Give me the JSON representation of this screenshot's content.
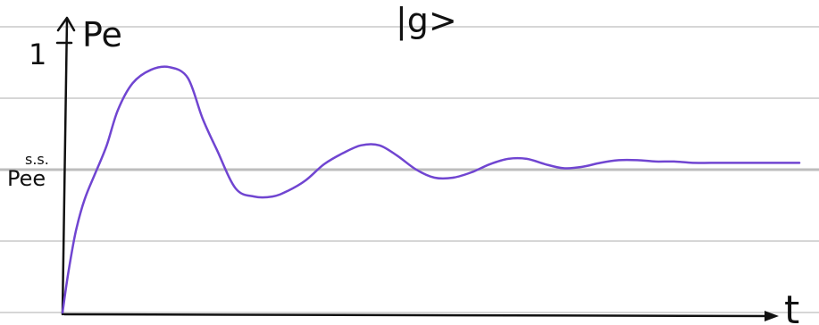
{
  "chart_data": {
    "type": "line",
    "title": "|g>",
    "xlabel": "t",
    "ylabel": "Pe",
    "y_tick_labels": {
      "top": "1",
      "steady_state": "Pee",
      "steady_state_sup": "s.s."
    },
    "ylim": [
      0,
      1
    ],
    "xlim": [
      0,
      10
    ],
    "steady_state_value": 0.55,
    "grid": true,
    "grid_orientation": "horizontal",
    "series": [
      {
        "color": "#7045d1",
        "x": [
          0,
          0.08,
          0.18,
          0.3,
          0.45,
          0.6,
          0.75,
          0.95,
          1.2,
          1.45,
          1.7,
          1.9,
          2.1,
          2.35,
          2.6,
          2.85,
          3.05,
          3.3,
          3.55,
          3.8,
          4.05,
          4.3,
          4.55,
          4.8,
          5.05,
          5.3,
          5.55,
          5.8,
          6.05,
          6.3,
          6.55,
          6.8,
          7.05,
          7.3,
          7.55,
          7.8,
          8.05,
          8.3,
          8.55,
          8.8,
          9.1,
          9.4,
          9.7,
          10
        ],
        "y": [
          0.0,
          0.15,
          0.3,
          0.42,
          0.52,
          0.62,
          0.75,
          0.85,
          0.9,
          0.91,
          0.87,
          0.72,
          0.6,
          0.46,
          0.43,
          0.43,
          0.45,
          0.49,
          0.55,
          0.59,
          0.62,
          0.62,
          0.58,
          0.53,
          0.5,
          0.5,
          0.52,
          0.55,
          0.57,
          0.57,
          0.55,
          0.535,
          0.54,
          0.555,
          0.565,
          0.565,
          0.56,
          0.56,
          0.555,
          0.555,
          0.555,
          0.555,
          0.555,
          0.555
        ]
      }
    ]
  }
}
